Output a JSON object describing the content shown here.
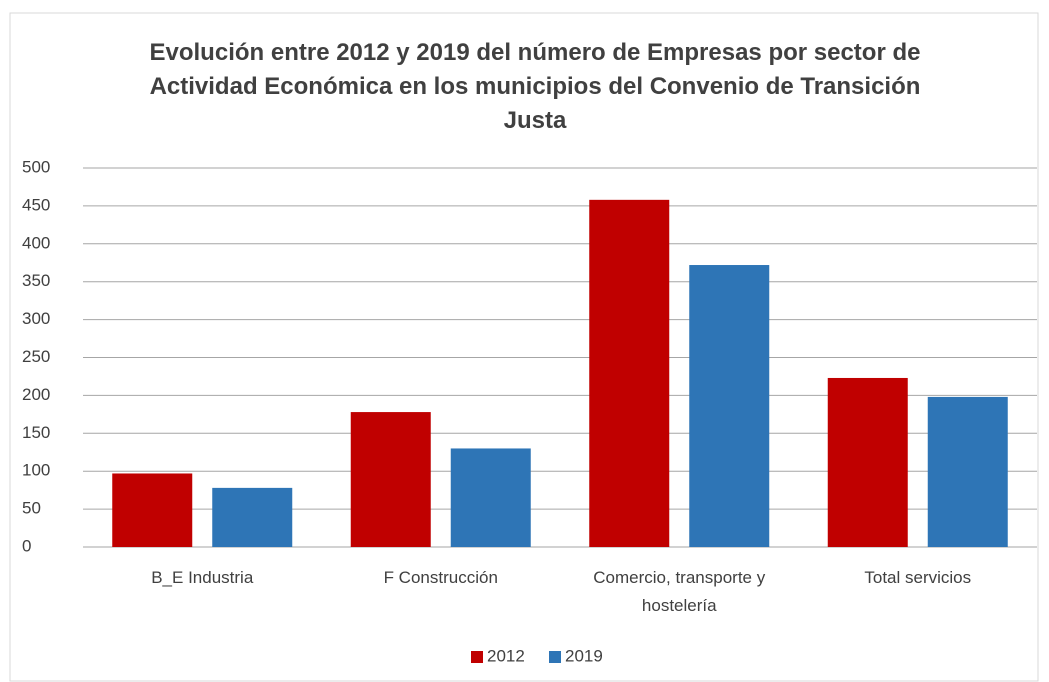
{
  "chart_data": {
    "type": "bar",
    "title": "Evolución entre 2012 y 2019 del número de Empresas por sector de Actividad Económica en los municipios del Convenio de Transición Justa",
    "categories": [
      "B_E Industria",
      "F Construcción",
      "Comercio, transporte y hostelería",
      "Total servicios"
    ],
    "series": [
      {
        "name": "2012",
        "color": "#c00000",
        "values": [
          97,
          178,
          458,
          223
        ]
      },
      {
        "name": "2019",
        "color": "#2e75b6",
        "values": [
          78,
          130,
          372,
          198
        ]
      }
    ],
    "ylim": [
      0,
      500
    ],
    "yticks": [
      0,
      50,
      100,
      150,
      200,
      250,
      300,
      350,
      400,
      450,
      500
    ],
    "grid": true,
    "legend": "bottom"
  }
}
